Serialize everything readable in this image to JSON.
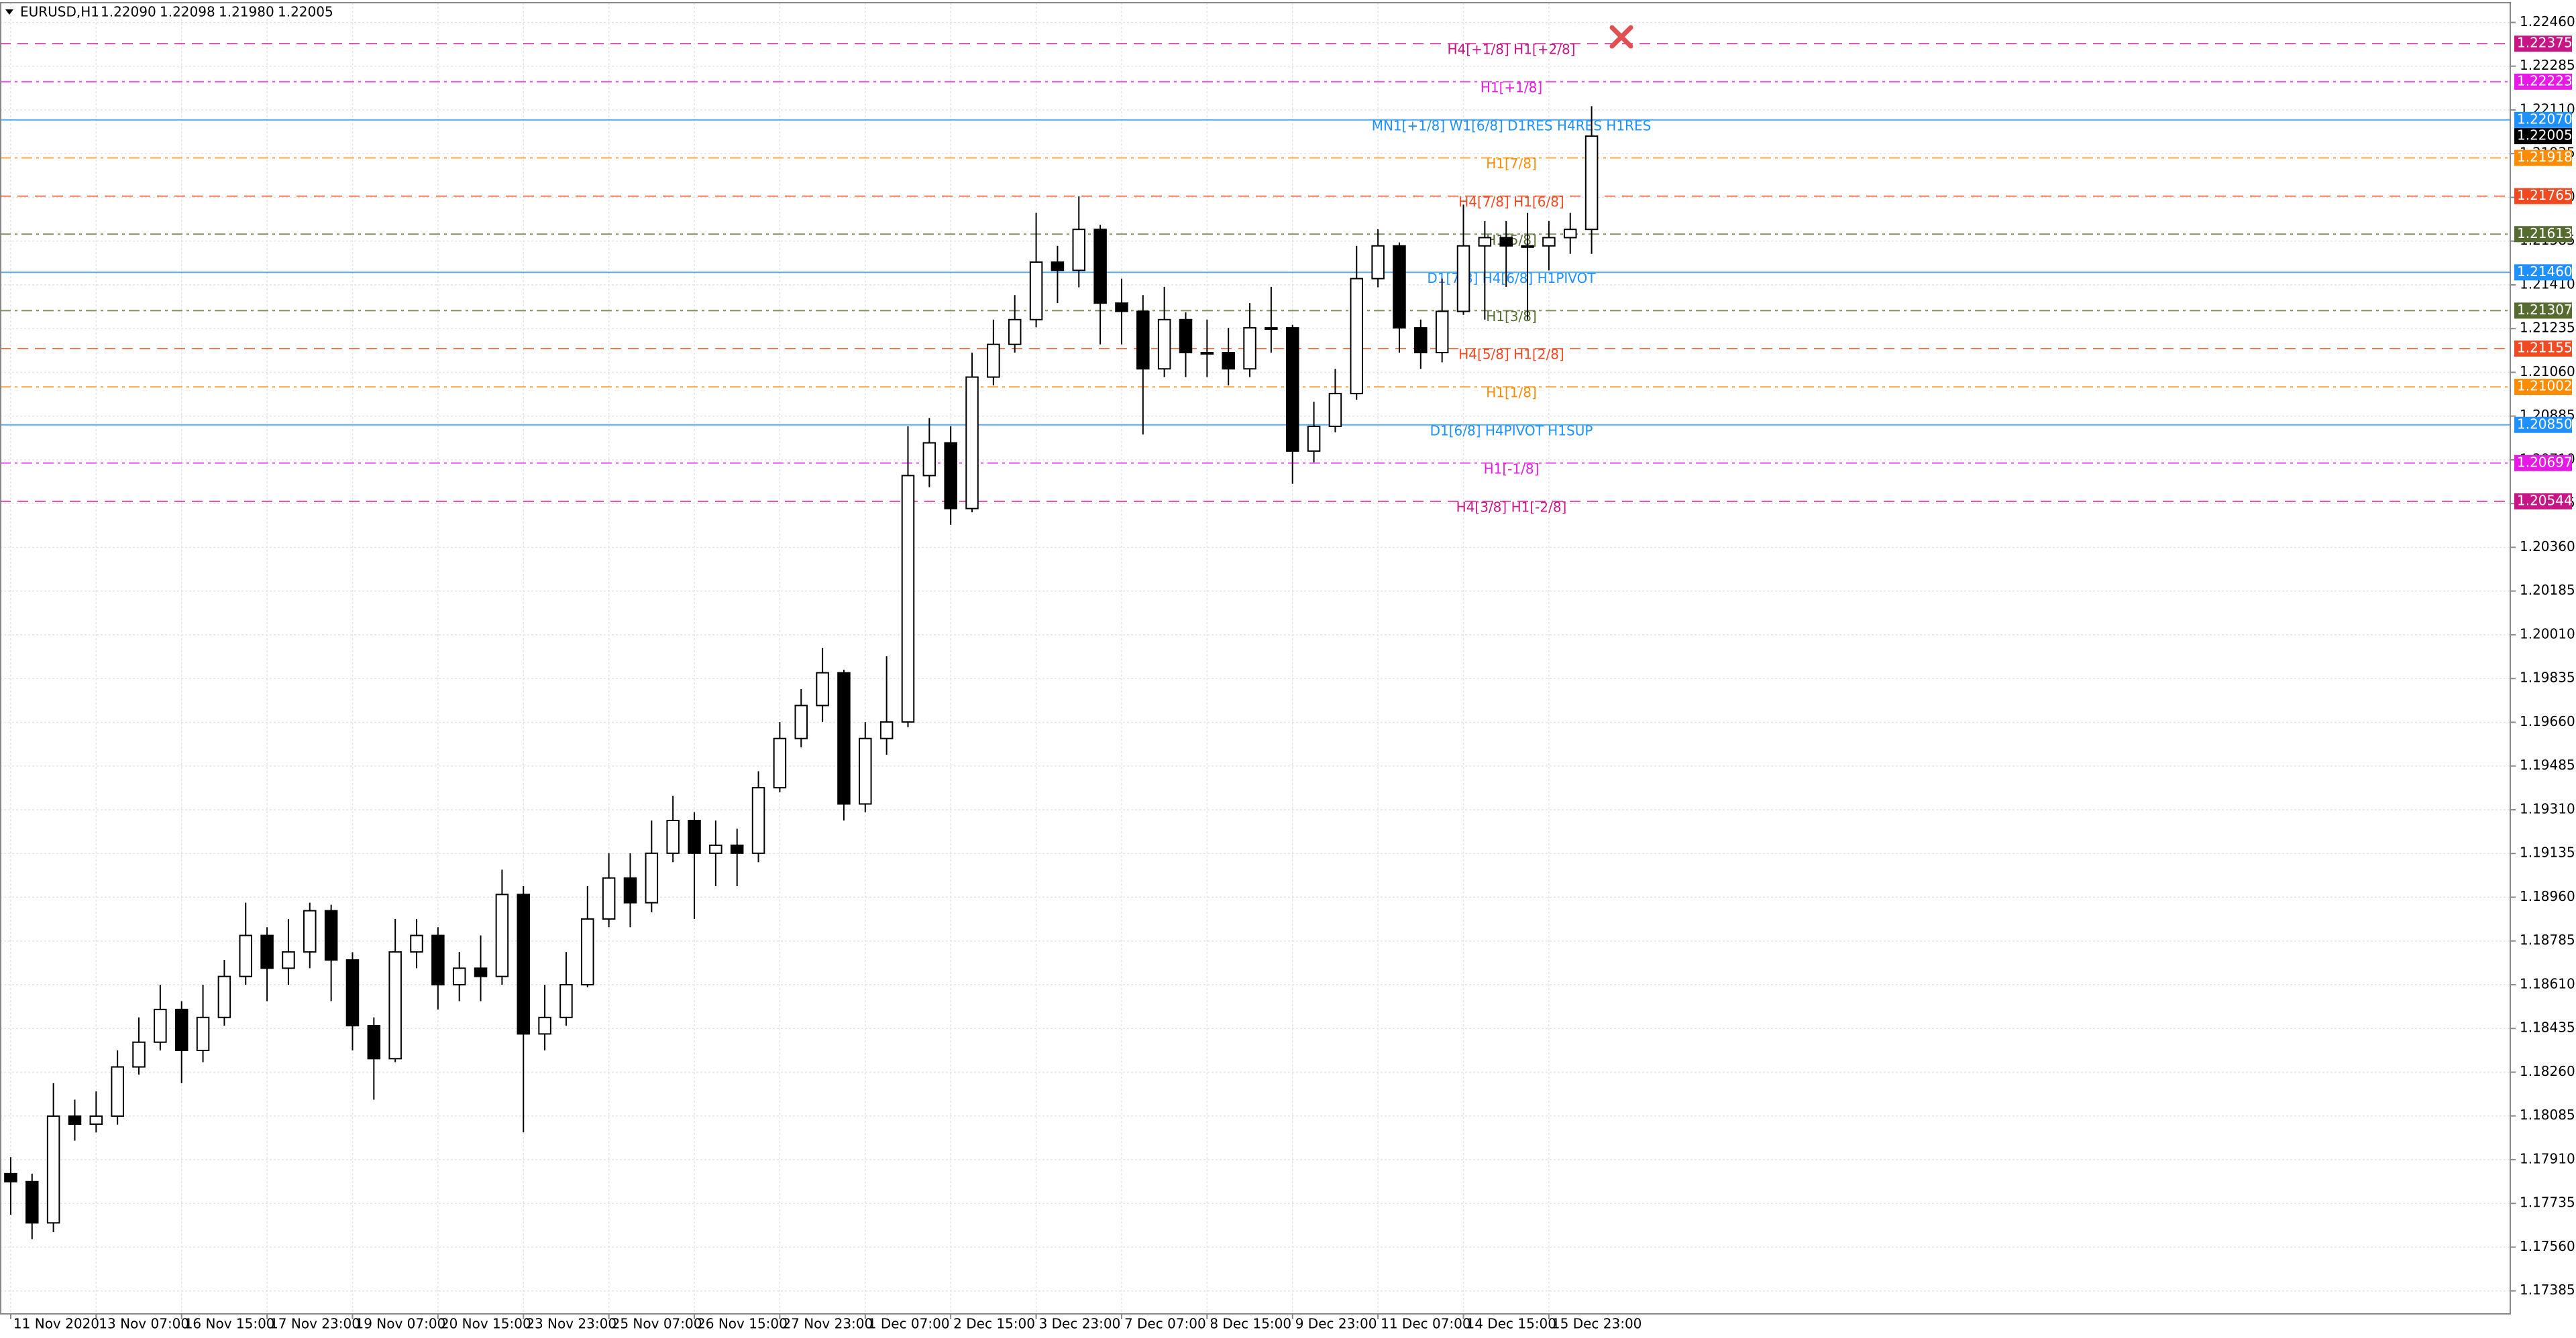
{
  "chart_data": {
    "type": "candlestick",
    "symbol": "EURUSD,H1",
    "header_values": [
      {
        "value": 1.2209,
        "label": "1.22090"
      },
      1.22098,
      {
        "value": 1.2198,
        "label": "1.21980"
      },
      1.22005
    ],
    "current_price": 1.22005,
    "open": [
      1.17854,
      1.17822,
      1.17657,
      1.18084,
      1.18052,
      1.18084,
      1.18281,
      1.1838,
      1.18511,
      1.18347,
      1.18479,
      1.18643,
      1.18807,
      1.18676,
      1.18741,
      1.18906,
      1.18709,
      1.18446,
      1.18314,
      1.18741,
      1.18807,
      1.1861,
      1.18676,
      1.18643,
      1.18971,
      1.18413,
      1.18479,
      1.1861,
      1.18873,
      1.19037,
      1.18938,
      1.19136,
      1.19267,
      1.19136,
      1.19168,
      1.19136,
      1.19398,
      1.19595,
      1.19727,
      1.19858,
      1.19333,
      1.19595,
      1.19661,
      1.20647,
      1.20778,
      1.20515,
      1.21041,
      1.21172,
      1.21271,
      1.21501,
      1.21468,
      1.21632,
      1.21337,
      1.21304,
      1.21074,
      1.21271,
      1.21139,
      1.21139,
      1.21074,
      1.21238,
      1.21238,
      1.20745,
      1.20844,
      1.20975,
      1.21435,
      1.21566,
      1.21238,
      1.21139,
      1.21304,
      1.21566,
      1.21599,
      1.21566,
      1.21566,
      1.21599,
      1.21632
    ],
    "high": [
      1.1792,
      1.17854,
      1.18216,
      1.1815,
      1.18183,
      1.18347,
      1.18479,
      1.1861,
      1.18544,
      1.1861,
      1.18709,
      1.18938,
      1.1884,
      1.18873,
      1.18938,
      1.1893,
      1.1874,
      1.18479,
      1.18873,
      1.18873,
      1.1884,
      1.18741,
      1.18807,
      1.1907,
      1.19004,
      1.1861,
      1.18741,
      1.19004,
      1.19136,
      1.19136,
      1.19267,
      1.19366,
      1.193,
      1.19267,
      1.19234,
      1.19464,
      1.19661,
      1.19793,
      1.19957,
      1.1987,
      1.19661,
      1.19924,
      1.20844,
      1.20877,
      1.20844,
      1.21139,
      1.21271,
      1.21369,
      1.21698,
      1.21566,
      1.21764,
      1.2165,
      1.21435,
      1.21369,
      1.21402,
      1.213,
      1.21271,
      1.21238,
      1.21337,
      1.21402,
      1.2125,
      1.20942,
      1.21074,
      1.21566,
      1.21632,
      1.2158,
      1.21271,
      1.21435,
      1.21731,
      1.21665,
      1.21665,
      1.21698,
      1.21665,
      1.21698,
      1.22125
    ],
    "low": [
      1.1769,
      1.17592,
      1.1762,
      1.17986,
      1.18019,
      1.1805,
      1.1825,
      1.18347,
      1.18216,
      1.183,
      1.18446,
      1.1861,
      1.18544,
      1.1861,
      1.18676,
      1.18544,
      1.18347,
      1.1815,
      1.183,
      1.18676,
      1.18511,
      1.18544,
      1.18544,
      1.1861,
      1.18019,
      1.18347,
      1.18446,
      1.186,
      1.1884,
      1.1884,
      1.189,
      1.191,
      1.18873,
      1.19004,
      1.19004,
      1.191,
      1.1938,
      1.1956,
      1.19661,
      1.19267,
      1.193,
      1.1953,
      1.1964,
      1.206,
      1.2045,
      1.205,
      1.21008,
      1.21139,
      1.2124,
      1.21337,
      1.214,
      1.21172,
      1.21172,
      1.20811,
      1.21041,
      1.21041,
      1.21041,
      1.21008,
      1.21041,
      1.21139,
      1.20614,
      1.207,
      1.2082,
      1.2095,
      1.214,
      1.21139,
      1.21074,
      1.211,
      1.2129,
      1.21271,
      1.21402,
      1.21271,
      1.21468,
      1.21534,
      1.21534
    ],
    "close": [
      1.17822,
      1.17657,
      1.18084,
      1.18052,
      1.18084,
      1.18281,
      1.1838,
      1.18511,
      1.18347,
      1.18479,
      1.18643,
      1.18807,
      1.18676,
      1.18741,
      1.18906,
      1.18709,
      1.18446,
      1.18314,
      1.18741,
      1.18807,
      1.1861,
      1.18676,
      1.18643,
      1.18971,
      1.18413,
      1.18479,
      1.1861,
      1.18873,
      1.19037,
      1.18938,
      1.19136,
      1.19267,
      1.19136,
      1.19168,
      1.19136,
      1.19398,
      1.19595,
      1.19727,
      1.19858,
      1.19333,
      1.19595,
      1.19661,
      1.20647,
      1.20778,
      1.20515,
      1.21041,
      1.21172,
      1.21271,
      1.21501,
      1.21468,
      1.21632,
      1.21337,
      1.21304,
      1.21074,
      1.21271,
      1.21139,
      1.21139,
      1.21074,
      1.21238,
      1.21238,
      1.20745,
      1.20844,
      1.20975,
      1.21435,
      1.21566,
      1.21238,
      1.21139,
      1.21304,
      1.21566,
      1.21599,
      1.21566,
      1.21566,
      1.21599,
      1.21632,
      1.22005
    ],
    "xlim": [
      -0.5,
      117
    ],
    "xticks": [
      {
        "value": 0,
        "label": "11 Nov 2020"
      },
      {
        "value": 4,
        "label": "13 Nov 07:00"
      },
      {
        "value": 8,
        "label": "16 Nov 15:00"
      },
      {
        "value": 12,
        "label": "17 Nov 23:00"
      },
      {
        "value": 16,
        "label": "19 Nov 07:00"
      },
      {
        "value": 20,
        "label": "20 Nov 15:00"
      },
      {
        "value": 24,
        "label": "23 Nov 23:00"
      },
      {
        "value": 28,
        "label": "25 Nov 07:00"
      },
      {
        "value": 32,
        "label": "26 Nov 15:00"
      },
      {
        "value": 36,
        "label": "27 Nov 23:00"
      },
      {
        "value": 40,
        "label": "1 Dec 07:00"
      },
      {
        "value": 44,
        "label": "2 Dec 15:00"
      },
      {
        "value": 48,
        "label": "3 Dec 23:00"
      },
      {
        "value": 52,
        "label": "7 Dec 07:00"
      },
      {
        "value": 56,
        "label": "8 Dec 15:00"
      },
      {
        "value": 60,
        "label": "9 Dec 23:00"
      },
      {
        "value": 64,
        "label": "11 Dec 07:00"
      },
      {
        "value": 68,
        "label": "14 Dec 15:00"
      },
      {
        "value": 72,
        "label": "15 Dec 23:00"
      }
    ],
    "ylim": [
      1.17293,
      1.22539
    ],
    "yticks": [
      1.17385,
      {
        "value": 1.1756,
        "label": "1.17560"
      },
      1.17735,
      {
        "value": 1.1791,
        "label": "1.17910"
      },
      1.18085,
      {
        "value": 1.1826,
        "label": "1.18260"
      },
      1.18435,
      {
        "value": 1.1861,
        "label": "1.18610"
      },
      1.18785,
      {
        "value": 1.1896,
        "label": "1.18960"
      },
      1.19135,
      {
        "value": 1.1931,
        "label": "1.19310"
      },
      1.19485,
      {
        "value": 1.1966,
        "label": "1.19660"
      },
      1.19835,
      {
        "value": 1.2001,
        "label": "1.20010"
      },
      1.20185,
      {
        "value": 1.2036,
        "label": "1.20360"
      },
      1.20535,
      {
        "value": 1.2071,
        "label": "1.20710"
      },
      1.20885,
      {
        "value": 1.2106,
        "label": "1.21060"
      },
      1.21235,
      {
        "value": 1.2141,
        "label": "1.21410"
      },
      1.21585,
      {
        "value": 1.2176,
        "label": "1.21760"
      },
      1.21935,
      {
        "value": 1.2211,
        "label": "1.22110"
      },
      1.22285,
      {
        "value": 1.2246,
        "label": "1.22460"
      }
    ],
    "grid": true,
    "up_color": "#ffffff",
    "down_color": "#000000",
    "levels": [
      {
        "value": 1.22375,
        "text": "H4[+1/8] H1[+2/8]",
        "color": "#c71585",
        "style": "dash"
      },
      {
        "value": 1.22223,
        "text": "H1[+1/8]",
        "color": "#e619e6",
        "style": "dashdot"
      },
      {
        "value": 1.2207,
        "value_label": "1.22070",
        "text": "MN1[+1/8] W1[6/8] D1RES H4RES H1RES",
        "color": "#1e90ff",
        "style": "solid"
      },
      {
        "value": 1.21918,
        "text": "H1[7/8]",
        "color": "#ff8c00",
        "style": "dashdot"
      },
      {
        "value": 1.21765,
        "text": "H4[7/8] H1[6/8]",
        "color": "#ef4a22",
        "style": "dash"
      },
      {
        "value": 1.21613,
        "text": "H1[5/8]",
        "color": "#556b2f",
        "style": "dashdot"
      },
      {
        "value": 1.2146,
        "value_label": "1.21460",
        "text": "D1[7/8] H4[6/8] H1PIVOT",
        "color": "#1e90ff",
        "style": "solid"
      },
      {
        "value": 1.21307,
        "text": "H1[3/8]",
        "color": "#556b2f",
        "style": "dashdot"
      },
      {
        "value": 1.21155,
        "text": "H4[5/8] H1[2/8]",
        "color": "#ef4a22",
        "style": "dash"
      },
      {
        "value": 1.21002,
        "text": "H1[1/8]",
        "color": "#ff8c00",
        "style": "dashdot"
      },
      {
        "value": 1.2085,
        "value_label": "1.20850",
        "text": "D1[6/8] H4PIVOT H1SUP",
        "color": "#1e90ff",
        "style": "solid"
      },
      {
        "value": 1.20697,
        "text": "H1[-1/8]",
        "color": "#e619e6",
        "style": "dashdot"
      },
      {
        "value": 1.20544,
        "text": "H4[3/8] H1[-2/8]",
        "color": "#c71585",
        "style": "dash"
      }
    ]
  }
}
